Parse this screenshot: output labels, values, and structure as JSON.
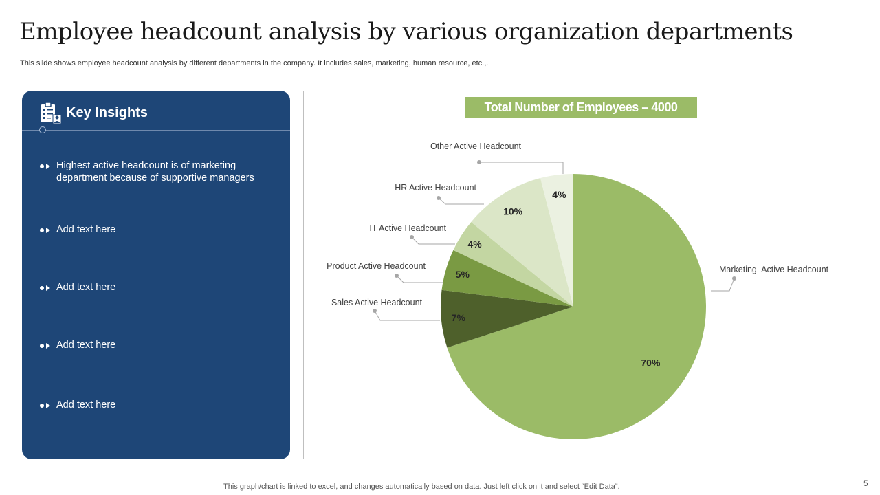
{
  "slide": {
    "title": "Employee headcount analysis by various organization departments",
    "subtitle": "This slide shows employee headcount analysis by  different departments in the company. It includes sales, marketing, human resource, etc.,.",
    "footer": "This graph/chart is linked to excel,  and changes automatically based on data. Just left click on it and select “Edit Data”.",
    "page_number": "5"
  },
  "insights": {
    "title": "Key Insights",
    "icon": "clipboard-people-icon",
    "items": [
      {
        "text": "Highest active headcount is of marketing department because of supportive managers"
      },
      {
        "text": "Add text here"
      },
      {
        "text": "Add text here"
      },
      {
        "text": "Add text here"
      },
      {
        "text": "Add text here"
      }
    ]
  },
  "colors": {
    "panel": "#1e4677",
    "accent": "#9bbb67"
  },
  "chart_data": {
    "type": "pie",
    "title": "Total Number of Employees – 4000",
    "start": "12 o'clock, clockwise",
    "slices": [
      {
        "label": "Marketing  Active Headcount",
        "value": 70,
        "display": "70%",
        "color": "#9bbb67"
      },
      {
        "label": "Sales Active Headcount",
        "value": 7,
        "display": "7%",
        "color": "#4e602b"
      },
      {
        "label": "Product Active Headcount",
        "value": 5,
        "display": "5%",
        "color": "#7a9a43"
      },
      {
        "label": "IT Active Headcount",
        "value": 4,
        "display": "4%",
        "color": "#c3d6a2"
      },
      {
        "label": "HR Active Headcount",
        "value": 10,
        "display": "10%",
        "color": "#dbe6c7"
      },
      {
        "label": "Other Active Headcount",
        "value": 4,
        "display": "4%",
        "color": "#ebf1e1"
      }
    ]
  }
}
